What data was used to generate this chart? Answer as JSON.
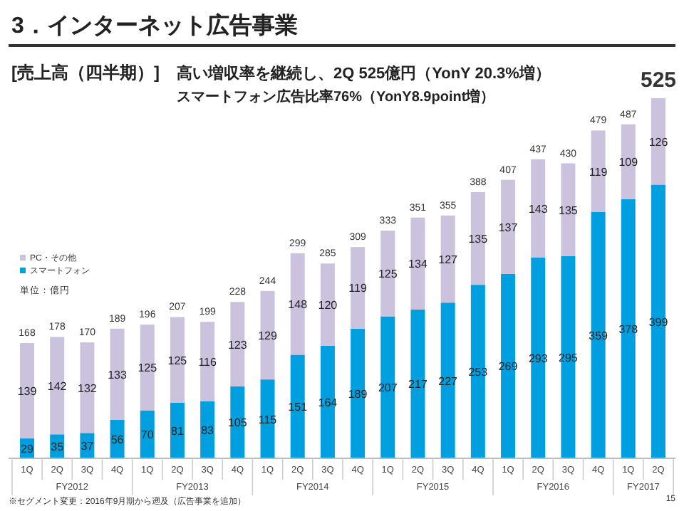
{
  "chart_data": {
    "type": "bar",
    "stacked": true,
    "title": "3．インターネット広告事業",
    "subtitle": "[売上高（四半期）]",
    "categories": [
      "1Q",
      "2Q",
      "3Q",
      "4Q",
      "1Q",
      "2Q",
      "3Q",
      "4Q",
      "1Q",
      "2Q",
      "3Q",
      "4Q",
      "1Q",
      "2Q",
      "3Q",
      "4Q",
      "1Q",
      "2Q",
      "3Q",
      "4Q",
      "1Q",
      "2Q"
    ],
    "series": [
      {
        "name": "スマートフォン",
        "color": "#00a0e0",
        "values": [
          29,
          35,
          37,
          56,
          70,
          81,
          83,
          105,
          115,
          151,
          164,
          189,
          207,
          217,
          227,
          253,
          269,
          293,
          295,
          359,
          378,
          399
        ]
      },
      {
        "name": "PC・その他",
        "color": "#cbc3de",
        "values": [
          139,
          142,
          132,
          133,
          125,
          125,
          116,
          123,
          129,
          148,
          120,
          119,
          125,
          134,
          127,
          135,
          137,
          143,
          135,
          119,
          109,
          126
        ]
      }
    ],
    "data_labels": true,
    "totals": [
      "168",
      "178",
      "170",
      "189",
      "196",
      "207",
      "199",
      "228",
      "244",
      "299",
      "285",
      "309",
      "333",
      "351",
      "355",
      "388",
      "407",
      "437",
      "430",
      "479",
      "487",
      "525"
    ],
    "legend": "top left",
    "annotations": [
      "高い増収率を継続し、2Q 525億円（YonY 20.3%増）",
      "スマートフォン広告比率76%（YonY8.9point増）",
      "単位：億円",
      "FY2012",
      "FY2013",
      "FY2014",
      "FY2015",
      "FY2016",
      "FY2017",
      "※セグメント変更：2016年9月期から遡及（広告事業を追加）",
      "15"
    ]
  }
}
